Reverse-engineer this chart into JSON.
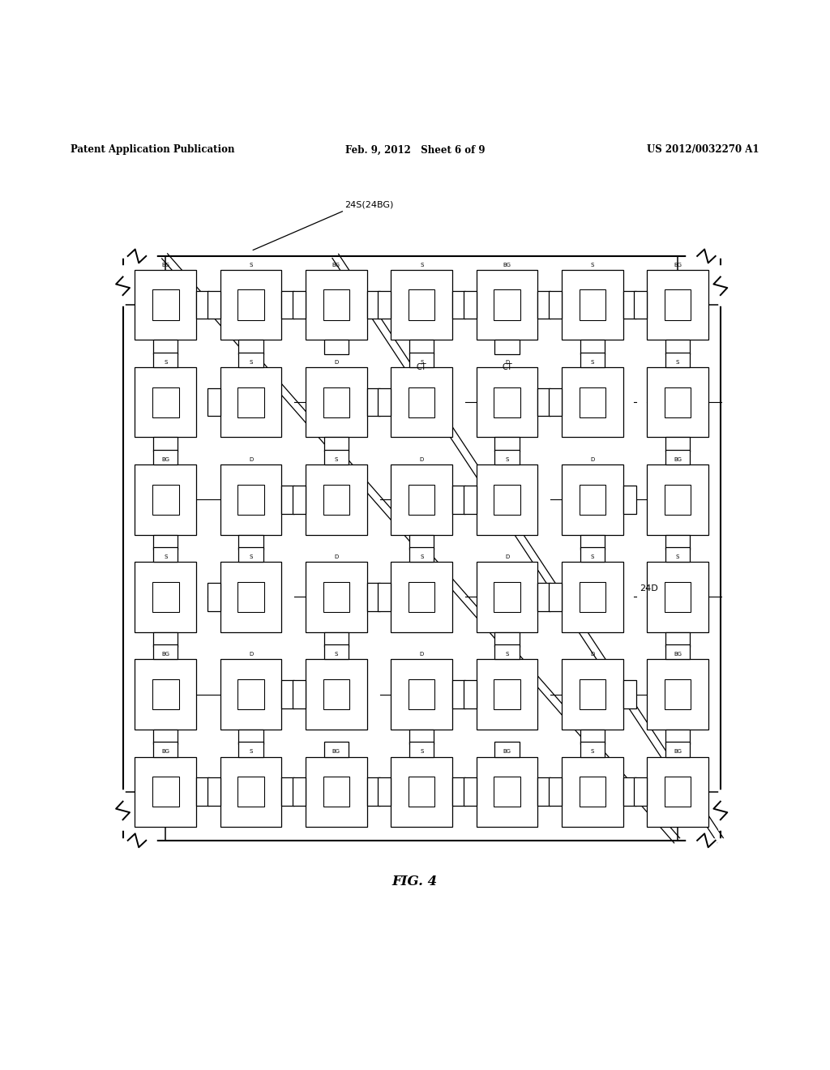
{
  "header_left": "Patent Application Publication",
  "header_mid": "Feb. 9, 2012   Sheet 6 of 9",
  "header_right": "US 2012/0032270 A1",
  "label_24S": "24S(24BG)",
  "label_24D": "24D",
  "label_CT": "CT",
  "fig_label": "FIG. 4",
  "bg_color": "#ffffff",
  "line_color": "#000000",
  "DL": 0.148,
  "DR": 0.868,
  "DT": 0.838,
  "DB": 0.13,
  "ncols": 7,
  "nrows": 6
}
